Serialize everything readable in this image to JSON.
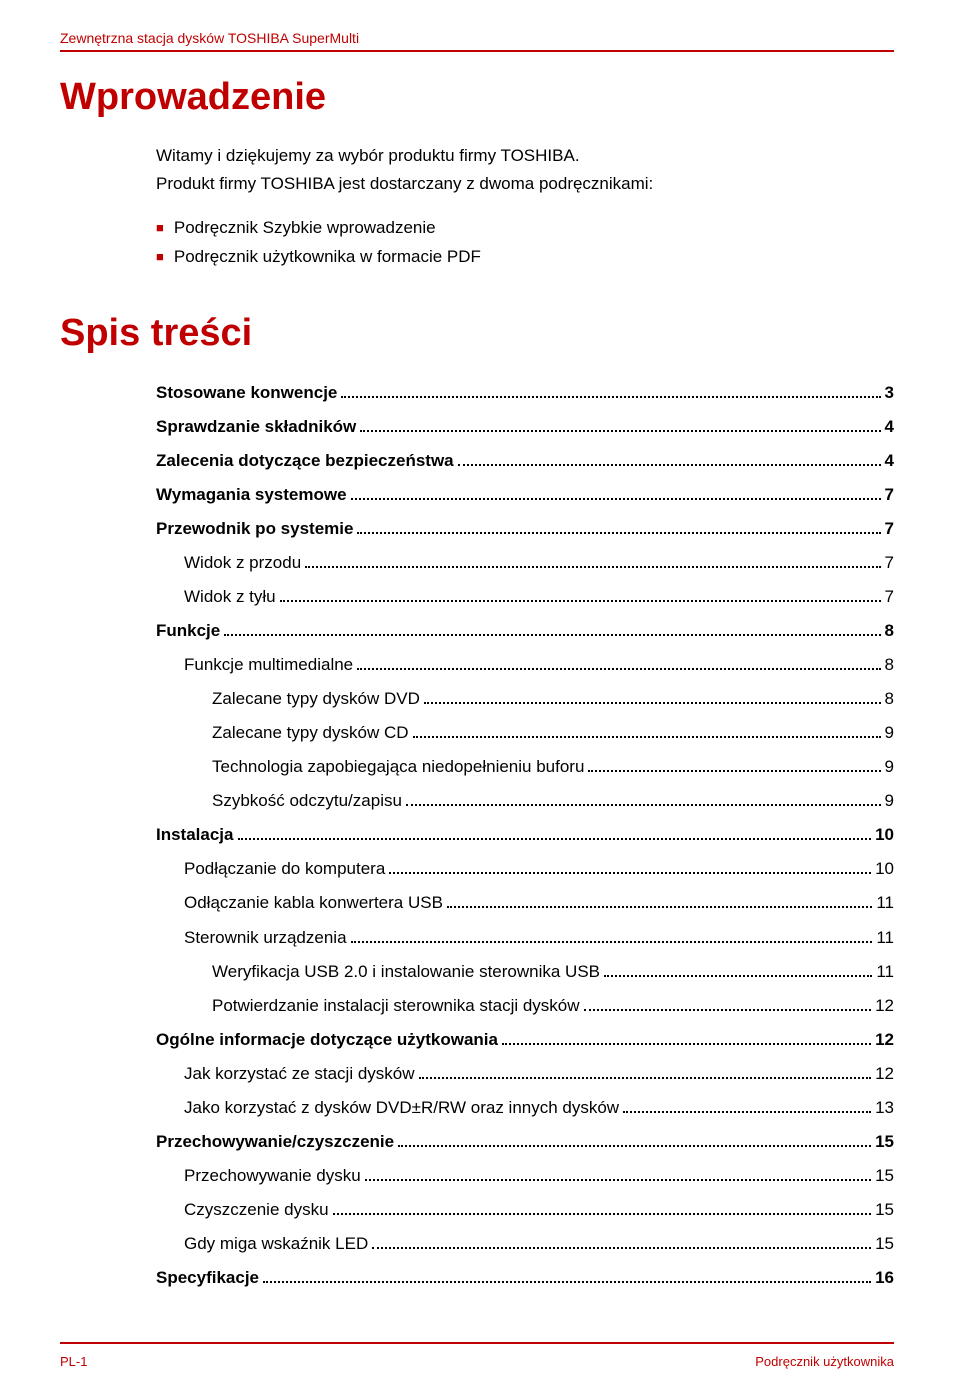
{
  "colors": {
    "accent": "#c00000",
    "text": "#000000",
    "background": "#ffffff"
  },
  "header": {
    "text": "Zewnętrzna stacja dysków TOSHIBA SuperMulti"
  },
  "intro": {
    "title": "Wprowadzenie",
    "paragraphs": [
      "Witamy i dziękujemy za wybór produktu firmy TOSHIBA.",
      "Produkt firmy TOSHIBA jest dostarczany z dwoma podręcznikami:"
    ],
    "bullets": [
      "Podręcznik Szybkie wprowadzenie",
      "Podręcznik użytkownika w formacie PDF"
    ]
  },
  "toc": {
    "title": "Spis treści",
    "entries": [
      {
        "label": "Stosowane konwencje",
        "page": "3",
        "level": 0,
        "bold": true
      },
      {
        "label": "Sprawdzanie składników",
        "page": "4",
        "level": 0,
        "bold": true
      },
      {
        "label": "Zalecenia dotyczące bezpieczeństwa",
        "page": "4",
        "level": 0,
        "bold": true
      },
      {
        "label": "Wymagania systemowe",
        "page": "7",
        "level": 0,
        "bold": true
      },
      {
        "label": "Przewodnik po systemie",
        "page": "7",
        "level": 0,
        "bold": true
      },
      {
        "label": "Widok z przodu",
        "page": "7",
        "level": 1,
        "bold": false
      },
      {
        "label": "Widok z tyłu",
        "page": "7",
        "level": 1,
        "bold": false
      },
      {
        "label": "Funkcje",
        "page": "8",
        "level": 0,
        "bold": true
      },
      {
        "label": "Funkcje multimedialne",
        "page": "8",
        "level": 1,
        "bold": false
      },
      {
        "label": "Zalecane typy dysków DVD",
        "page": "8",
        "level": 2,
        "bold": false
      },
      {
        "label": "Zalecane typy dysków CD",
        "page": "9",
        "level": 2,
        "bold": false
      },
      {
        "label": "Technologia zapobiegająca niedopełnieniu buforu",
        "page": "9",
        "level": 2,
        "bold": false
      },
      {
        "label": "Szybkość odczytu/zapisu",
        "page": "9",
        "level": 2,
        "bold": false
      },
      {
        "label": "Instalacja",
        "page": "10",
        "level": 0,
        "bold": true
      },
      {
        "label": "Podłączanie do komputera",
        "page": "10",
        "level": 1,
        "bold": false
      },
      {
        "label": "Odłączanie kabla konwertera USB",
        "page": "11",
        "level": 1,
        "bold": false
      },
      {
        "label": "Sterownik urządzenia",
        "page": "11",
        "level": 1,
        "bold": false
      },
      {
        "label": "Weryfikacja USB 2.0 i instalowanie sterownika USB",
        "page": "11",
        "level": 2,
        "bold": false
      },
      {
        "label": "Potwierdzanie instalacji sterownika stacji dysków",
        "page": "12",
        "level": 2,
        "bold": false
      },
      {
        "label": "Ogólne informacje dotyczące użytkowania",
        "page": "12",
        "level": 0,
        "bold": true
      },
      {
        "label": "Jak korzystać ze stacji dysków",
        "page": "12",
        "level": 1,
        "bold": false
      },
      {
        "label": "Jako korzystać z dysków DVD±R/RW oraz innych dysków",
        "page": "13",
        "level": 1,
        "bold": false
      },
      {
        "label": "Przechowywanie/czyszczenie",
        "page": "15",
        "level": 0,
        "bold": true
      },
      {
        "label": "Przechowywanie dysku",
        "page": "15",
        "level": 1,
        "bold": false
      },
      {
        "label": "Czyszczenie dysku",
        "page": "15",
        "level": 1,
        "bold": false
      },
      {
        "label": "Gdy miga wskaźnik LED",
        "page": "15",
        "level": 1,
        "bold": false
      },
      {
        "label": "Specyfikacje",
        "page": "16",
        "level": 0,
        "bold": true
      }
    ]
  },
  "footer": {
    "left": "PL-1",
    "right": "Podręcznik użytkownika"
  }
}
